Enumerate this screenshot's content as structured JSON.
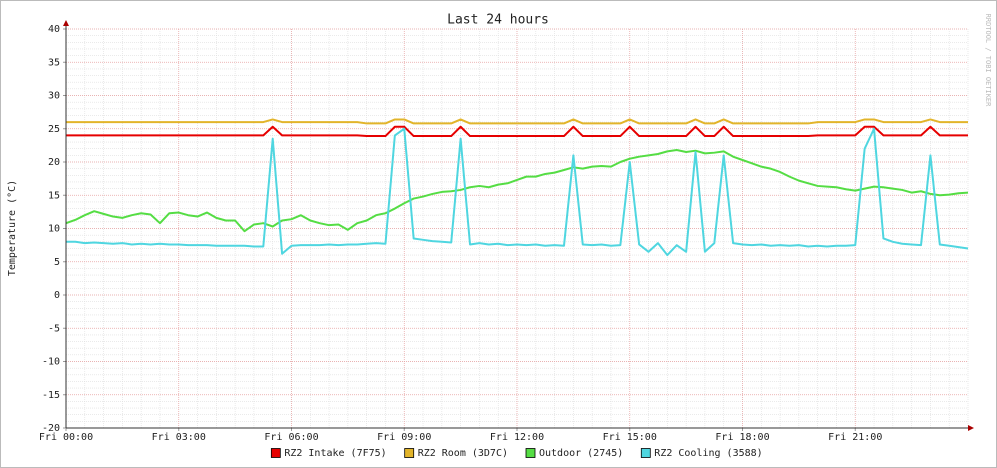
{
  "chart_data": {
    "type": "line",
    "title": "Last 24 hours",
    "y_label": "Temperature (°C)",
    "watermark": "RRDTOOL / TOBI OETIKER",
    "x": [
      0,
      0.25,
      0.5,
      0.75,
      1,
      1.25,
      1.5,
      1.75,
      2,
      2.25,
      2.5,
      2.75,
      3,
      3.25,
      3.5,
      3.75,
      4,
      4.25,
      4.5,
      4.75,
      5,
      5.25,
      5.5,
      5.75,
      6,
      6.25,
      6.5,
      6.75,
      7,
      7.25,
      7.5,
      7.75,
      8,
      8.25,
      8.5,
      8.75,
      9,
      9.25,
      9.5,
      9.75,
      10,
      10.25,
      10.5,
      10.75,
      11,
      11.25,
      11.5,
      11.75,
      12,
      12.25,
      12.5,
      12.75,
      13,
      13.25,
      13.5,
      13.75,
      14,
      14.25,
      14.5,
      14.75,
      15,
      15.25,
      15.5,
      15.75,
      16,
      16.25,
      16.5,
      16.75,
      17,
      17.25,
      17.5,
      17.75,
      18,
      18.25,
      18.5,
      18.75,
      19,
      19.25,
      19.5,
      19.75,
      20,
      20.25,
      20.5,
      20.75,
      21,
      21.25,
      21.5,
      21.75,
      22,
      22.25,
      22.5,
      22.75,
      23,
      23.25,
      23.5,
      23.75,
      24
    ],
    "xlim": [
      0,
      24
    ],
    "xticks": [
      {
        "value": 0,
        "label": "Fri 00:00"
      },
      {
        "value": 3,
        "label": "Fri 03:00"
      },
      {
        "value": 6,
        "label": "Fri 06:00"
      },
      {
        "value": 9,
        "label": "Fri 09:00"
      },
      {
        "value": 12,
        "label": "Fri 12:00"
      },
      {
        "value": 15,
        "label": "Fri 15:00"
      },
      {
        "value": 18,
        "label": "Fri 18:00"
      },
      {
        "value": 21,
        "label": "Fri 21:00"
      }
    ],
    "xminor": 0.5,
    "ylim": [
      -20,
      40
    ],
    "yticks": [
      40,
      35,
      30,
      25,
      20,
      15,
      10,
      5,
      0,
      -5,
      -10,
      -15,
      -20
    ],
    "yminor": 1,
    "grid": true,
    "legend": "bottom",
    "series": [
      {
        "name": "RZ2 Intake (7F75)",
        "color": "#e60000",
        "values": [
          24,
          24,
          24,
          24,
          24,
          24,
          24,
          24,
          24,
          24,
          24,
          24,
          24,
          24,
          24,
          24,
          24,
          24,
          24,
          24,
          24,
          24,
          25.3,
          24,
          24,
          24,
          24,
          24,
          24,
          24,
          24,
          24,
          23.9,
          23.9,
          23.9,
          25.3,
          25.3,
          23.9,
          23.9,
          23.9,
          23.9,
          23.9,
          25.3,
          23.9,
          23.9,
          23.9,
          23.9,
          23.9,
          23.9,
          23.9,
          23.9,
          23.9,
          23.9,
          23.9,
          25.3,
          23.9,
          23.9,
          23.9,
          23.9,
          23.9,
          25.3,
          23.9,
          23.9,
          23.9,
          23.9,
          23.9,
          23.9,
          25.3,
          23.9,
          23.9,
          25.3,
          23.9,
          23.9,
          23.9,
          23.9,
          23.9,
          23.9,
          23.9,
          23.9,
          23.9,
          24,
          24,
          24,
          24,
          24,
          25.3,
          25.3,
          24,
          24,
          24,
          24,
          24,
          25.3,
          24,
          24,
          24,
          24
        ]
      },
      {
        "name": "RZ2 Room (3D7C)",
        "color": "#e2b42a",
        "values": [
          26,
          26,
          26,
          26,
          26,
          26,
          26,
          26,
          26,
          26,
          26,
          26,
          26,
          26,
          26,
          26,
          26,
          26,
          26,
          26,
          26,
          26,
          26.4,
          26,
          26,
          26,
          26,
          26,
          26,
          26,
          26,
          26,
          25.8,
          25.8,
          25.8,
          26.4,
          26.4,
          25.8,
          25.8,
          25.8,
          25.8,
          25.8,
          26.4,
          25.8,
          25.8,
          25.8,
          25.8,
          25.8,
          25.8,
          25.8,
          25.8,
          25.8,
          25.8,
          25.8,
          26.4,
          25.8,
          25.8,
          25.8,
          25.8,
          25.8,
          26.4,
          25.8,
          25.8,
          25.8,
          25.8,
          25.8,
          25.8,
          26.4,
          25.8,
          25.8,
          26.4,
          25.8,
          25.8,
          25.8,
          25.8,
          25.8,
          25.8,
          25.8,
          25.8,
          25.8,
          26,
          26,
          26,
          26,
          26,
          26.4,
          26.4,
          26,
          26,
          26,
          26,
          26,
          26.4,
          26,
          26,
          26,
          26
        ]
      },
      {
        "name": "Outdoor (2745)",
        "color": "#55dd44",
        "values": [
          10.8,
          11.3,
          12.0,
          12.6,
          12.2,
          11.8,
          11.6,
          12.0,
          12.3,
          12.1,
          10.8,
          12.3,
          12.4,
          12.0,
          11.8,
          12.4,
          11.6,
          11.2,
          11.2,
          9.6,
          10.6,
          10.8,
          10.3,
          11.2,
          11.4,
          12.0,
          11.2,
          10.8,
          10.5,
          10.6,
          9.8,
          10.8,
          11.2,
          12.0,
          12.3,
          13.0,
          13.8,
          14.5,
          14.8,
          15.2,
          15.5,
          15.6,
          15.8,
          16.2,
          16.4,
          16.2,
          16.6,
          16.8,
          17.3,
          17.8,
          17.8,
          18.2,
          18.4,
          18.8,
          19.2,
          19.0,
          19.3,
          19.4,
          19.3,
          20.0,
          20.5,
          20.8,
          21.0,
          21.2,
          21.6,
          21.8,
          21.5,
          21.7,
          21.3,
          21.4,
          21.6,
          20.8,
          20.3,
          19.8,
          19.3,
          19.0,
          18.5,
          17.8,
          17.2,
          16.8,
          16.4,
          16.3,
          16.2,
          15.9,
          15.7,
          16.0,
          16.3,
          16.2,
          16.0,
          15.8,
          15.4,
          15.6,
          15.2,
          15.0,
          15.1,
          15.3,
          15.4
        ]
      },
      {
        "name": "RZ2 Cooling (3588)",
        "color": "#4fd6e0",
        "values": [
          8.0,
          8.0,
          7.8,
          7.9,
          7.8,
          7.7,
          7.8,
          7.6,
          7.7,
          7.6,
          7.7,
          7.6,
          7.6,
          7.5,
          7.5,
          7.5,
          7.4,
          7.4,
          7.4,
          7.4,
          7.3,
          7.3,
          23.5,
          6.2,
          7.4,
          7.5,
          7.5,
          7.5,
          7.6,
          7.5,
          7.6,
          7.6,
          7.7,
          7.8,
          7.7,
          24,
          25,
          8.5,
          8.3,
          8.1,
          8.0,
          7.9,
          23.5,
          7.6,
          7.8,
          7.6,
          7.7,
          7.5,
          7.6,
          7.5,
          7.6,
          7.4,
          7.5,
          7.4,
          21,
          7.6,
          7.5,
          7.6,
          7.4,
          7.5,
          20,
          7.6,
          6.5,
          7.8,
          6.0,
          7.5,
          6.5,
          21.5,
          6.5,
          7.8,
          21,
          7.8,
          7.6,
          7.5,
          7.6,
          7.4,
          7.5,
          7.4,
          7.5,
          7.3,
          7.4,
          7.3,
          7.4,
          7.4,
          7.5,
          22,
          25,
          8.5,
          8.0,
          7.7,
          7.6,
          7.5,
          21,
          7.6,
          7.4,
          7.2,
          7.0
        ]
      }
    ]
  }
}
